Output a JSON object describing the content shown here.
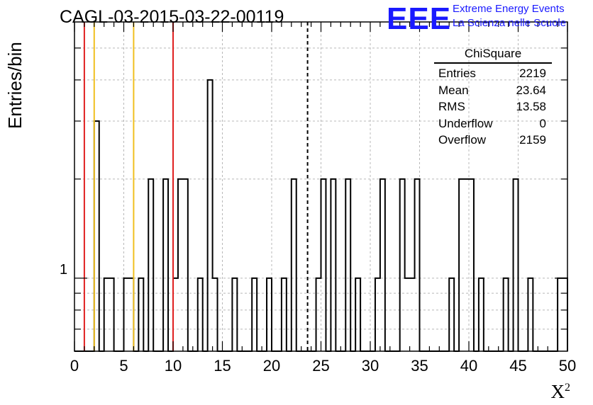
{
  "title": "CAGL-03-2015-03-22-00119",
  "logo": {
    "text": "EEE",
    "line1": "Extreme Energy Events",
    "line2": "La Scienza nelle Scuole",
    "color": "#1a1aff"
  },
  "stats": {
    "title": "ChiSquare",
    "rows": [
      {
        "label": "Entries",
        "value": "2219"
      },
      {
        "label": "Mean",
        "value": "23.64"
      },
      {
        "label": "RMS",
        "value": "13.58"
      },
      {
        "label": "Underflow",
        "value": "0"
      },
      {
        "label": "Overflow",
        "value": "2159"
      }
    ]
  },
  "chart_data": {
    "type": "histogram",
    "xlabel": "X²",
    "ylabel": "Entries/bin",
    "x_scale": "linear",
    "y_scale": "log",
    "xlim": [
      0,
      50
    ],
    "ylim": [
      0.6,
      6
    ],
    "bin_width": 0.5,
    "x_ticks": [
      0,
      5,
      10,
      15,
      20,
      25,
      30,
      35,
      40,
      45,
      50
    ],
    "y_tick_labels": [
      "1"
    ],
    "grid": true,
    "bins": [
      {
        "x": 2.0,
        "y": 3
      },
      {
        "x": 3.0,
        "y": 1
      },
      {
        "x": 3.5,
        "y": 1
      },
      {
        "x": 5.0,
        "y": 1
      },
      {
        "x": 5.5,
        "y": 1
      },
      {
        "x": 6.5,
        "y": 1
      },
      {
        "x": 7.5,
        "y": 2
      },
      {
        "x": 9.0,
        "y": 2
      },
      {
        "x": 10.0,
        "y": 1
      },
      {
        "x": 10.5,
        "y": 2
      },
      {
        "x": 11.0,
        "y": 2
      },
      {
        "x": 12.5,
        "y": 1
      },
      {
        "x": 13.5,
        "y": 4
      },
      {
        "x": 14.0,
        "y": 1
      },
      {
        "x": 16.0,
        "y": 1
      },
      {
        "x": 18.0,
        "y": 1
      },
      {
        "x": 19.5,
        "y": 1
      },
      {
        "x": 21.0,
        "y": 1
      },
      {
        "x": 22.0,
        "y": 2
      },
      {
        "x": 24.5,
        "y": 1
      },
      {
        "x": 25.0,
        "y": 2
      },
      {
        "x": 26.0,
        "y": 2
      },
      {
        "x": 27.5,
        "y": 2
      },
      {
        "x": 28.5,
        "y": 1
      },
      {
        "x": 30.5,
        "y": 1
      },
      {
        "x": 31.0,
        "y": 2
      },
      {
        "x": 33.0,
        "y": 2
      },
      {
        "x": 33.5,
        "y": 1
      },
      {
        "x": 34.0,
        "y": 1
      },
      {
        "x": 34.5,
        "y": 2
      },
      {
        "x": 38.0,
        "y": 1
      },
      {
        "x": 39.0,
        "y": 2
      },
      {
        "x": 39.5,
        "y": 2
      },
      {
        "x": 40.0,
        "y": 2
      },
      {
        "x": 41.0,
        "y": 1
      },
      {
        "x": 43.5,
        "y": 1
      },
      {
        "x": 44.5,
        "y": 2
      },
      {
        "x": 46.0,
        "y": 1
      },
      {
        "x": 49.0,
        "y": 1
      },
      {
        "x": 49.5,
        "y": 1
      }
    ],
    "markers": [
      {
        "x": 1.0,
        "color": "#e02020",
        "style": "solid"
      },
      {
        "x": 2.0,
        "color": "#f0c020",
        "style": "solid"
      },
      {
        "x": 6.0,
        "color": "#f0c020",
        "style": "solid"
      },
      {
        "x": 10.0,
        "color": "#e02020",
        "style": "solid"
      },
      {
        "x": 23.64,
        "color": "#000000",
        "style": "dashed"
      }
    ]
  }
}
